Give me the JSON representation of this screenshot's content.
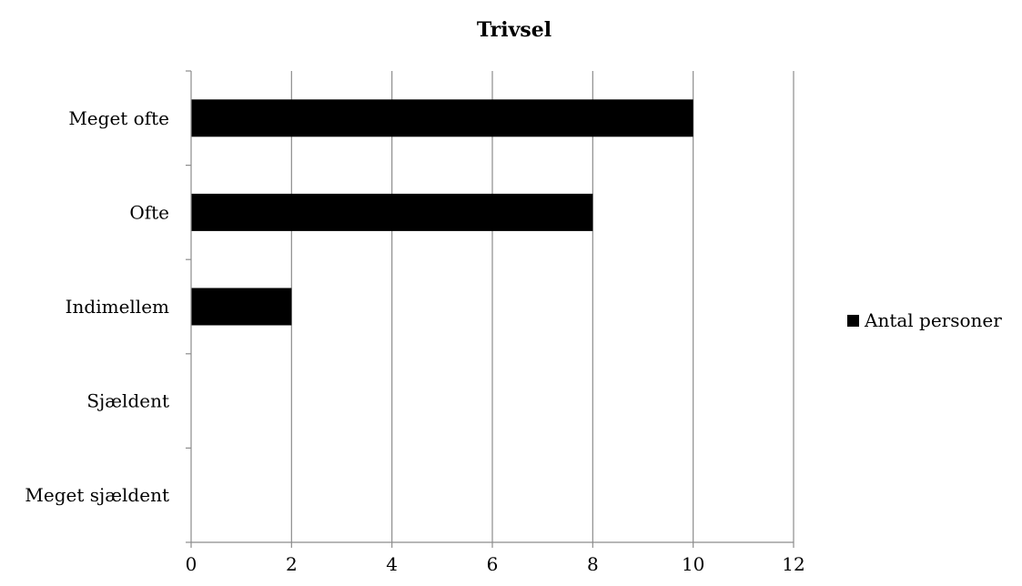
{
  "chart_data": {
    "type": "bar",
    "orientation": "horizontal",
    "title": "Trivsel",
    "xlabel": "",
    "ylabel": "",
    "categories": [
      "Meget ofte",
      "Ofte",
      "Indimellem",
      "Sjældent",
      "Meget sjældent"
    ],
    "series": [
      {
        "name": "Antal personer",
        "values": [
          10,
          8,
          2,
          0,
          0
        ],
        "color": "#000000"
      }
    ],
    "xlim": [
      0,
      12
    ],
    "xticks": [
      0,
      2,
      4,
      6,
      8,
      10,
      12
    ],
    "grid": "vertical",
    "legend": "right"
  }
}
